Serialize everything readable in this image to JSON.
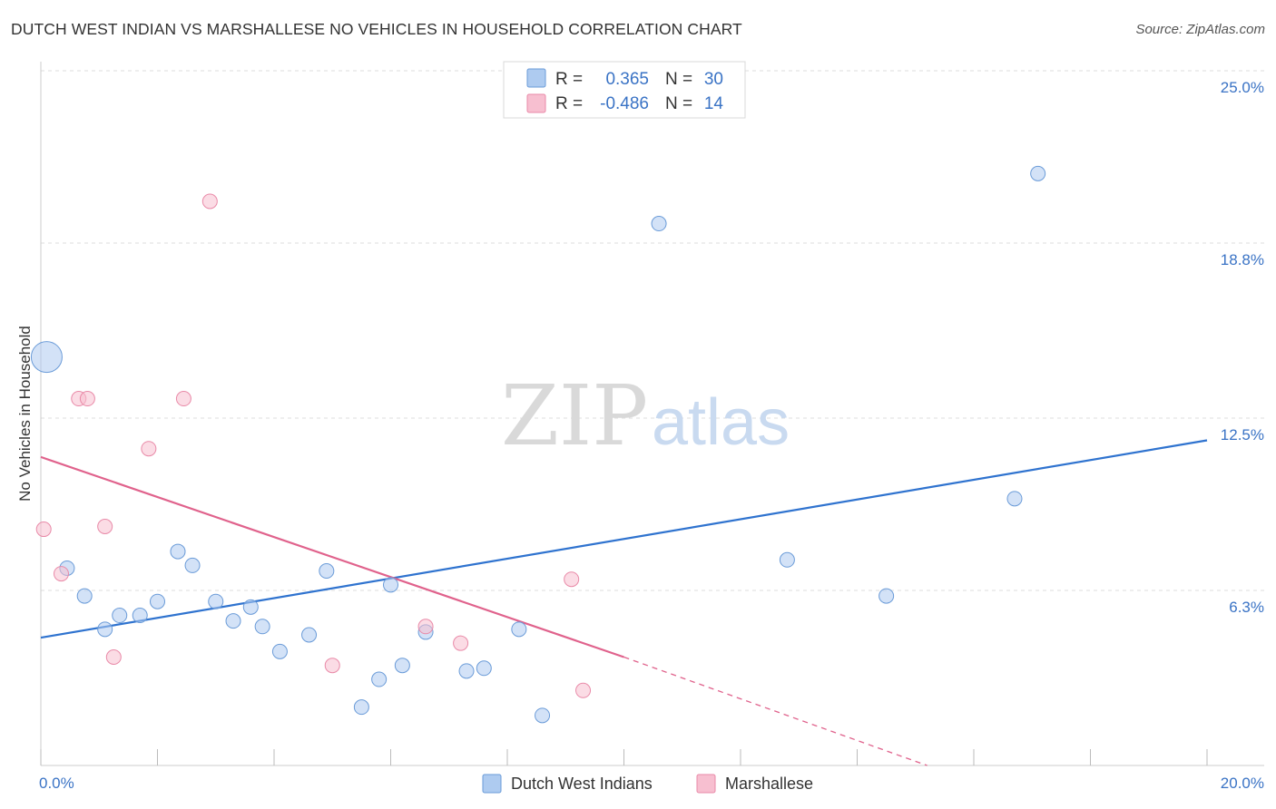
{
  "title": "DUTCH WEST INDIAN VS MARSHALLESE NO VEHICLES IN HOUSEHOLD CORRELATION CHART",
  "source": "Source: ZipAtlas.com",
  "watermark": {
    "zip": "ZIP",
    "atlas": "atlas"
  },
  "colors": {
    "blue_fill": "#aecbf0",
    "blue_stroke": "#6a9bd8",
    "blue_line": "#2f73cf",
    "pink_fill": "#f7bfd0",
    "pink_stroke": "#e98aa8",
    "pink_line": "#e0628c",
    "tick_text": "#3a73c5",
    "grid": "#dcdcdc"
  },
  "legend": {
    "rows": [
      {
        "r_label": "R =",
        "r_value": "0.365",
        "n_label": "N =",
        "n_value": "30",
        "series": "blue"
      },
      {
        "r_label": "R =",
        "r_value": "-0.486",
        "n_label": "N =",
        "n_value": "14",
        "series": "pink"
      }
    ]
  },
  "chart_data": {
    "type": "scatter",
    "title": "DUTCH WEST INDIAN VS MARSHALLESE NO VEHICLES IN HOUSEHOLD CORRELATION CHART",
    "xlabel": "",
    "ylabel": "No Vehicles in Household",
    "xlim": [
      0,
      20
    ],
    "ylim": [
      0,
      25
    ],
    "x_tick_labels": [
      {
        "value": 0,
        "label": "0.0%"
      },
      {
        "value": 20,
        "label": "20.0%"
      }
    ],
    "y_tick_labels": [
      {
        "value": 6.3,
        "label": "6.3%"
      },
      {
        "value": 12.5,
        "label": "12.5%"
      },
      {
        "value": 18.8,
        "label": "18.8%"
      },
      {
        "value": 25.0,
        "label": "25.0%"
      }
    ],
    "x_minor_ticks": [
      0,
      2,
      4,
      6,
      8,
      10,
      12,
      14,
      16,
      18,
      20
    ],
    "grid": true,
    "legend_position": "top-center",
    "series": [
      {
        "name": "Dutch West Indians",
        "color": "blue",
        "R": 0.365,
        "N": 30,
        "trend": {
          "x": [
            0,
            20
          ],
          "y": [
            4.6,
            11.7
          ]
        },
        "points": [
          {
            "x": 0.1,
            "y": 14.7,
            "size": "large"
          },
          {
            "x": 0.45,
            "y": 7.1
          },
          {
            "x": 0.75,
            "y": 6.1
          },
          {
            "x": 1.1,
            "y": 4.9
          },
          {
            "x": 1.35,
            "y": 5.4
          },
          {
            "x": 1.7,
            "y": 5.4
          },
          {
            "x": 2.0,
            "y": 5.9
          },
          {
            "x": 2.35,
            "y": 7.7
          },
          {
            "x": 2.6,
            "y": 7.2
          },
          {
            "x": 3.0,
            "y": 5.9
          },
          {
            "x": 3.3,
            "y": 5.2
          },
          {
            "x": 3.6,
            "y": 5.7
          },
          {
            "x": 3.8,
            "y": 5.0
          },
          {
            "x": 4.1,
            "y": 4.1
          },
          {
            "x": 4.6,
            "y": 4.7
          },
          {
            "x": 4.9,
            "y": 7.0
          },
          {
            "x": 5.5,
            "y": 2.1
          },
          {
            "x": 5.8,
            "y": 3.1
          },
          {
            "x": 6.0,
            "y": 6.5
          },
          {
            "x": 6.2,
            "y": 3.6
          },
          {
            "x": 6.6,
            "y": 4.8
          },
          {
            "x": 7.3,
            "y": 3.4
          },
          {
            "x": 7.6,
            "y": 3.5
          },
          {
            "x": 8.2,
            "y": 4.9
          },
          {
            "x": 8.6,
            "y": 1.8
          },
          {
            "x": 10.6,
            "y": 19.5
          },
          {
            "x": 12.8,
            "y": 7.4
          },
          {
            "x": 14.5,
            "y": 6.1
          },
          {
            "x": 16.7,
            "y": 9.6
          },
          {
            "x": 17.1,
            "y": 21.3
          }
        ]
      },
      {
        "name": "Marshallese",
        "color": "pink",
        "R": -0.486,
        "N": 14,
        "trend": {
          "x": [
            0,
            10.0
          ],
          "y": [
            11.1,
            3.9
          ]
        },
        "trend_extension": {
          "x": [
            10.0,
            15.2
          ],
          "y": [
            3.9,
            0.0
          ]
        },
        "points": [
          {
            "x": 0.05,
            "y": 8.5
          },
          {
            "x": 0.35,
            "y": 6.9
          },
          {
            "x": 0.65,
            "y": 13.2
          },
          {
            "x": 0.8,
            "y": 13.2
          },
          {
            "x": 1.1,
            "y": 8.6
          },
          {
            "x": 1.25,
            "y": 3.9
          },
          {
            "x": 1.85,
            "y": 11.4
          },
          {
            "x": 2.45,
            "y": 13.2
          },
          {
            "x": 2.9,
            "y": 20.3
          },
          {
            "x": 5.0,
            "y": 3.6
          },
          {
            "x": 6.6,
            "y": 5.0
          },
          {
            "x": 7.2,
            "y": 4.4
          },
          {
            "x": 9.1,
            "y": 6.7
          },
          {
            "x": 9.3,
            "y": 2.7
          }
        ]
      }
    ]
  }
}
